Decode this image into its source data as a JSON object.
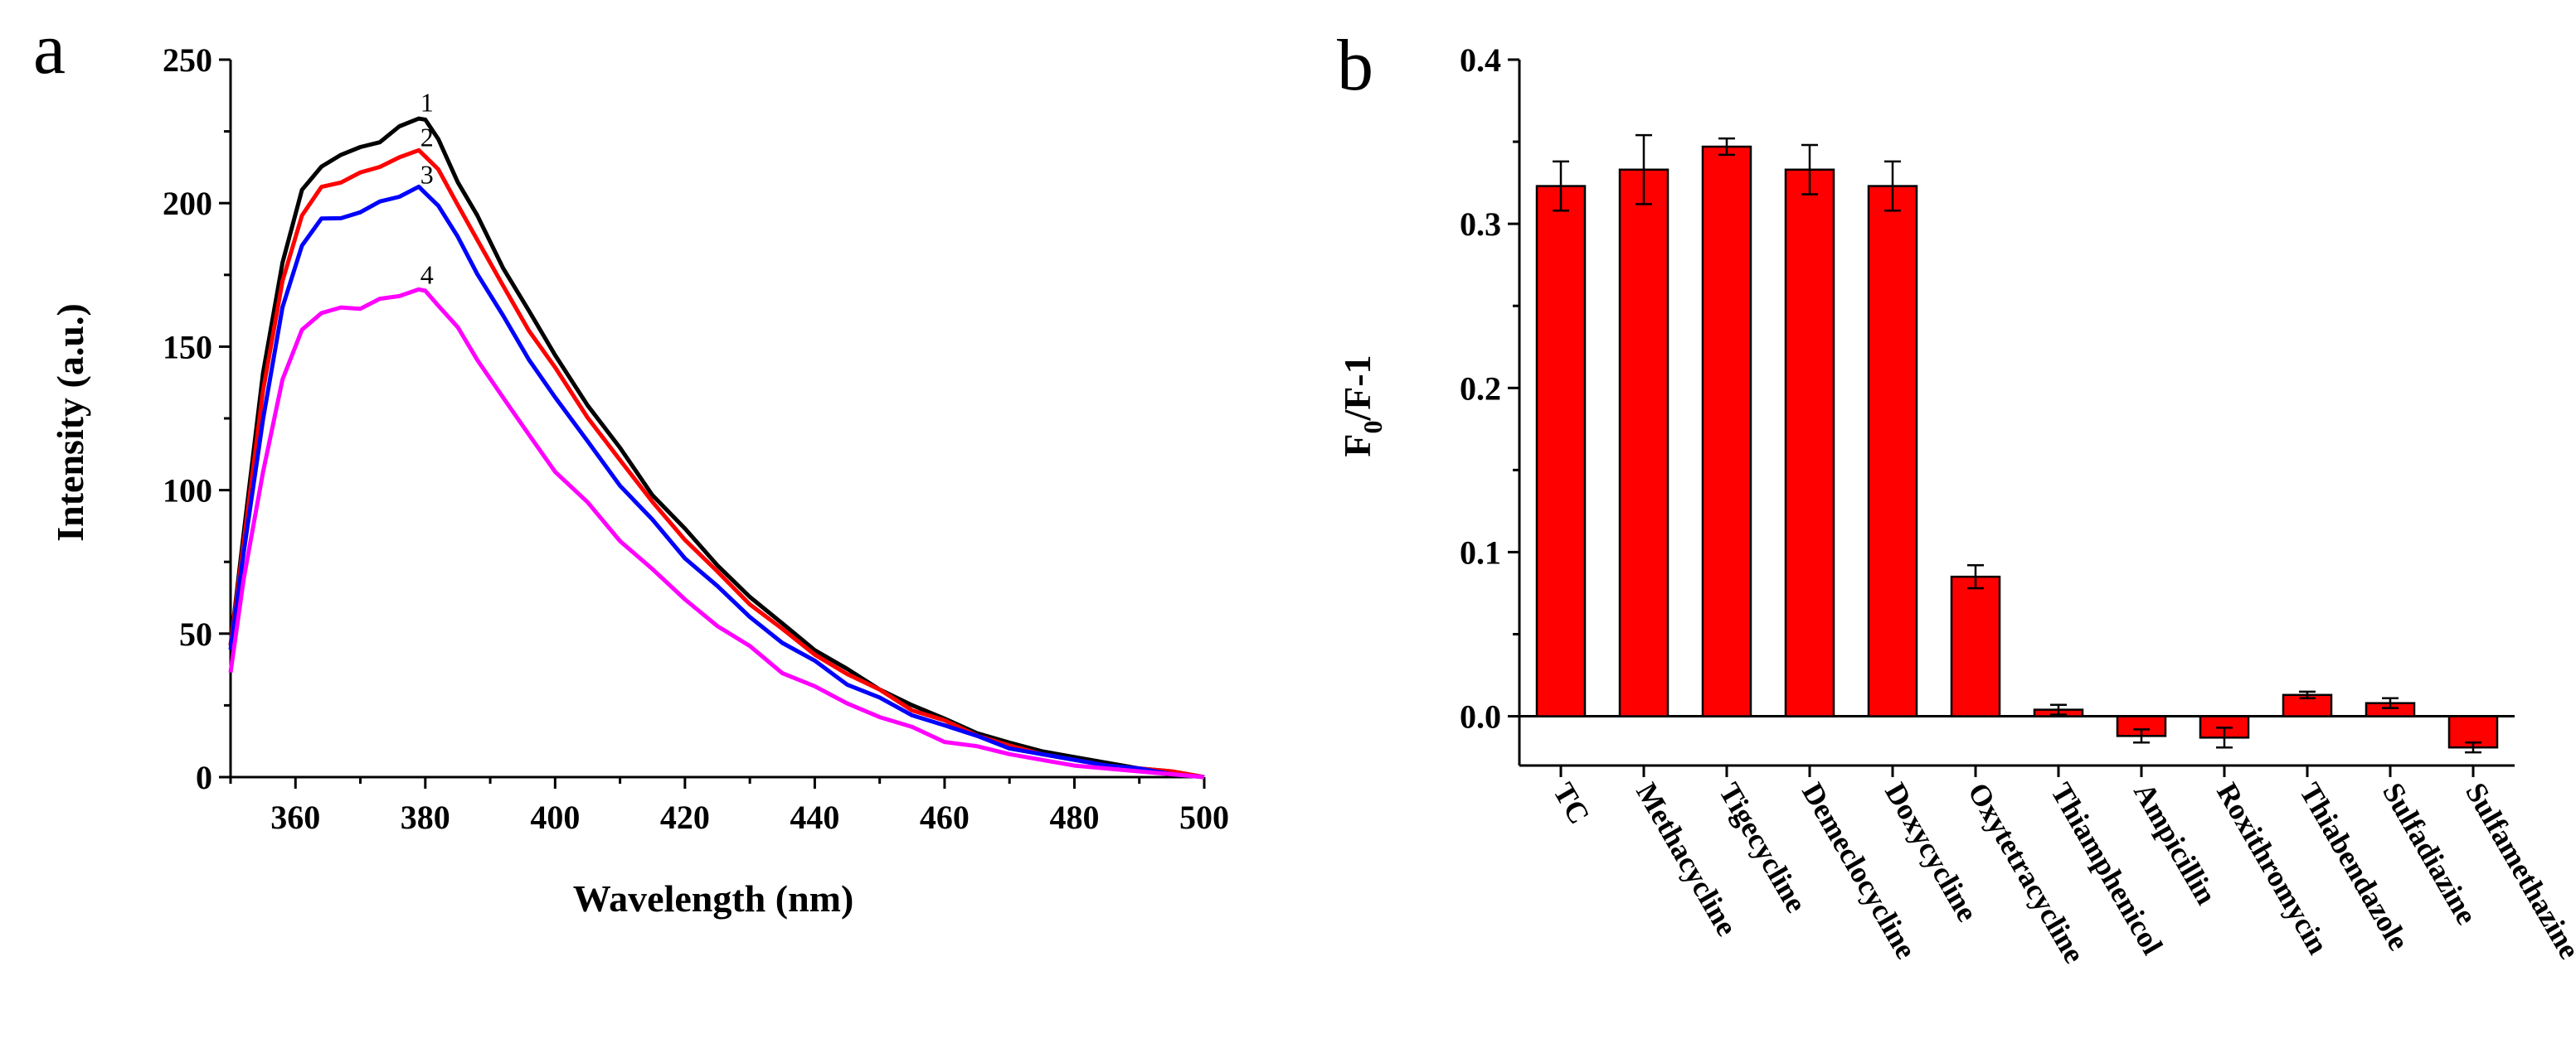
{
  "chart_data": [
    {
      "panel": "a",
      "type": "line",
      "title": "",
      "xlabel": "Wavelength (nm)",
      "ylabel": "Intensity (a.u.)",
      "xlim": [
        350,
        500
      ],
      "ylim": [
        0,
        250
      ],
      "xticks": [
        360,
        380,
        400,
        420,
        440,
        460,
        480,
        500
      ],
      "yticks": [
        0,
        50,
        100,
        150,
        200,
        250
      ],
      "x": [
        350,
        352,
        355,
        358,
        361,
        364,
        367,
        370,
        373,
        376,
        379,
        380,
        382,
        385,
        388,
        392,
        396,
        400,
        405,
        410,
        415,
        420,
        425,
        430,
        435,
        440,
        445,
        450,
        455,
        460,
        465,
        470,
        475,
        480,
        485,
        490,
        495,
        500
      ],
      "series": [
        {
          "name": "1",
          "color": "#000000",
          "values": [
            46,
            85,
            140,
            180,
            204,
            213,
            217,
            219,
            222,
            226,
            230,
            229,
            222,
            208,
            195,
            178,
            162,
            147,
            130,
            114,
            99,
            86,
            74,
            63,
            53,
            45,
            37,
            31,
            25,
            20,
            16,
            12,
            9,
            7,
            5,
            3,
            2,
            0
          ]
        },
        {
          "name": "2",
          "color": "#ff0000",
          "values": [
            45,
            82,
            134,
            173,
            196,
            205,
            208,
            210,
            213,
            216,
            218,
            217,
            211,
            200,
            187,
            171,
            156,
            142,
            126,
            110,
            96,
            83,
            71,
            61,
            51,
            43,
            36,
            30,
            24,
            19,
            15,
            11,
            8,
            6,
            4,
            3,
            2,
            0
          ]
        },
        {
          "name": "3",
          "color": "#0000ff",
          "values": [
            44,
            78,
            125,
            163,
            186,
            194,
            195,
            197,
            200,
            203,
            205,
            204,
            199,
            188,
            176,
            160,
            146,
            132,
            117,
            102,
            89,
            77,
            66,
            56,
            47,
            40,
            33,
            27,
            22,
            18,
            14,
            10,
            8,
            6,
            4,
            3,
            1,
            0
          ]
        },
        {
          "name": "4",
          "color": "#ff00ff",
          "values": [
            37,
            68,
            107,
            138,
            156,
            162,
            163,
            164,
            166,
            168,
            170,
            169,
            165,
            156,
            146,
            132,
            119,
            107,
            95,
            83,
            72,
            62,
            53,
            45,
            37,
            31,
            26,
            21,
            17,
            13,
            10,
            8,
            6,
            4,
            3,
            2,
            1,
            0
          ]
        }
      ]
    },
    {
      "panel": "b",
      "type": "bar",
      "title": "",
      "xlabel": "",
      "ylabel": "F0/F-1",
      "ylabel_main": "F",
      "ylabel_sub": "0",
      "ylabel_rest": "/F-1",
      "ylim": [
        -0.03,
        0.4
      ],
      "yticks": [
        "0.0",
        "0.1",
        "0.2",
        "0.3",
        "0.4"
      ],
      "bar_color": "#ff0000",
      "categories": [
        "TC",
        "Methacycline",
        "Tigecycline",
        "Demeclocycline",
        "Doxycycline",
        "Oxytetracycline",
        "Thiamphenicol",
        "Ampicillin",
        "Roxithromycin",
        "Thiabendazole",
        "Sulfadiazine",
        "Sulfamethazine"
      ],
      "values": [
        0.323,
        0.333,
        0.347,
        0.333,
        0.323,
        0.085,
        0.004,
        -0.012,
        -0.013,
        0.013,
        0.008,
        -0.019
      ],
      "errors": [
        0.015,
        0.021,
        0.005,
        0.015,
        0.015,
        0.007,
        0.003,
        0.004,
        0.006,
        0.002,
        0.003,
        0.003
      ]
    }
  ]
}
